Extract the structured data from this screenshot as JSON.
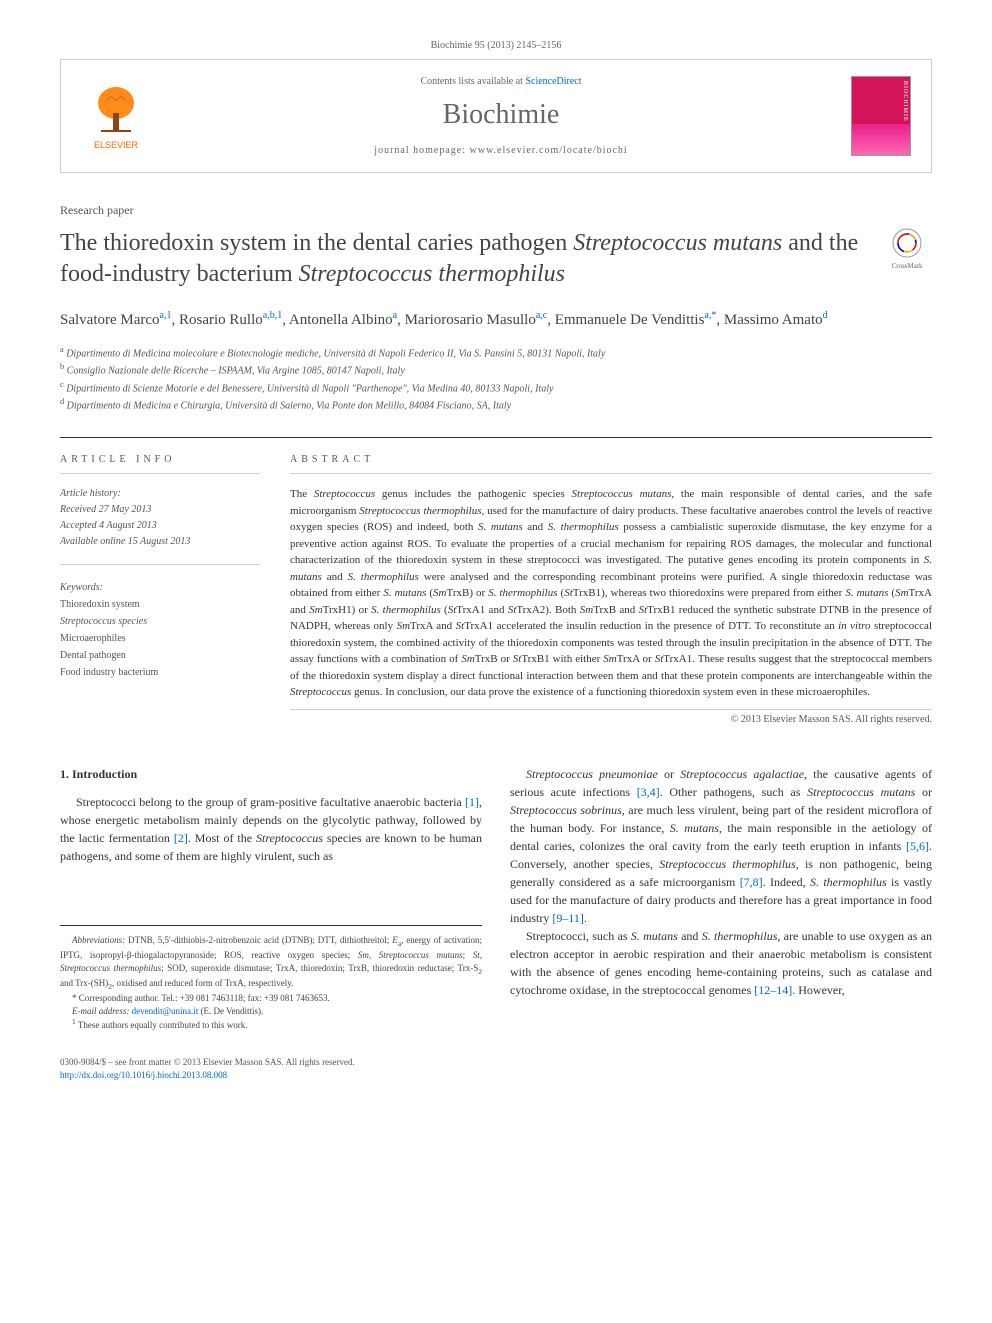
{
  "citation": "Biochimie 95 (2013) 2145–2156",
  "journal_box": {
    "contents_prefix": "Contents lists available at ",
    "contents_link": "ScienceDirect",
    "journal_name": "Biochimie",
    "homepage_prefix": "journal homepage: ",
    "homepage_url": "www.elsevier.com/locate/biochi",
    "elsevier_label": "ELSEVIER",
    "cover_label": "BIOCHIMIE"
  },
  "article_type": "Research paper",
  "title_parts": {
    "p1": "The thioredoxin system in the dental caries pathogen ",
    "em1": "Streptococcus mutans",
    "p2": " and the food-industry bacterium ",
    "em2": "Streptococcus thermophilus"
  },
  "crossmark_label": "CrossMark",
  "authors_html": "Salvatore Marco<sup>a,1</sup>, Rosario Rullo<sup>a,b,1</sup>, Antonella Albino<sup>a</sup>, Mariorosario Masullo<sup>a,c</sup>, Emmanuele De Vendittis<sup>a,*</sup>, Massimo Amato<sup>d</sup>",
  "affiliations": [
    "a Dipartimento di Medicina molecolare e Biotecnologie mediche, Università di Napoli Federico II, Via S. Pansini 5, 80131 Napoli, Italy",
    "b Consiglio Nazionale delle Ricerche – ISPAAM, Via Argine 1085, 80147 Napoli, Italy",
    "c Dipartimento di Scienze Motorie e del Benessere, Università di Napoli \"Parthenope\", Via Medina 40, 80133 Napoli, Italy",
    "d Dipartimento di Medicina e Chirurgia, Università di Salerno, Via Ponte don Melillo, 84084 Fisciano, SA, Italy"
  ],
  "info": {
    "heading": "ARTICLE INFO",
    "history_label": "Article history:",
    "received": "Received 27 May 2013",
    "accepted": "Accepted 4 August 2013",
    "online": "Available online 15 August 2013",
    "keywords_label": "Keywords:",
    "keywords": [
      "Thioredoxin system",
      "Streptococcus species",
      "Microaerophiles",
      "Dental pathogen",
      "Food industry bacterium"
    ]
  },
  "abstract": {
    "heading": "ABSTRACT",
    "text_html": "The <em>Streptococcus</em> genus includes the pathogenic species <em>Streptococcus mutans</em>, the main responsible of dental caries, and the safe microorganism <em>Streptococcus thermophilus</em>, used for the manufacture of dairy products. These facultative anaerobes control the levels of reactive oxygen species (ROS) and indeed, both <em>S. mutans</em> and <em>S. thermophilus</em> possess a cambialistic superoxide dismutase, the key enzyme for a preventive action against ROS. To evaluate the properties of a crucial mechanism for repairing ROS damages, the molecular and functional characterization of the thioredoxin system in these streptococci was investigated. The putative genes encoding its protein components in <em>S. mutans</em> and <em>S. thermophilus</em> were analysed and the corresponding recombinant proteins were purified. A single thioredoxin reductase was obtained from either <em>S. mutans</em> (<em>Sm</em>TrxB) or <em>S. thermophilus</em> (<em>St</em>TrxB1), whereas two thioredoxins were prepared from either <em>S. mutans</em> (<em>Sm</em>TrxA and <em>Sm</em>TrxH1) or <em>S. thermophilus</em> (<em>St</em>TrxA1 and <em>St</em>TrxA2). Both <em>Sm</em>TrxB and <em>St</em>TrxB1 reduced the synthetic substrate DTNB in the presence of NADPH, whereas only <em>Sm</em>TrxA and <em>St</em>TrxA1 accelerated the insulin reduction in the presence of DTT. To reconstitute an <em>in vitro</em> streptococcal thioredoxin system, the combined activity of the thioredoxin components was tested through the insulin precipitation in the absence of DTT. The assay functions with a combination of <em>Sm</em>TrxB or <em>St</em>TrxB1 with either <em>Sm</em>TrxA or <em>St</em>TrxA1. These results suggest that the streptococcal members of the thioredoxin system display a direct functional interaction between them and that these protein components are interchangeable within the <em>Streptococcus</em> genus. In conclusion, our data prove the existence of a functioning thioredoxin system even in these microaerophiles.",
    "copyright": "© 2013 Elsevier Masson SAS. All rights reserved."
  },
  "body": {
    "section_heading": "1. Introduction",
    "col1_p1_html": "Streptococci belong to the group of gram-positive facultative anaerobic bacteria <span class=\"ref-link\">[1]</span>, whose energetic metabolism mainly depends on the glycolytic pathway, followed by the lactic fermentation <span class=\"ref-link\">[2]</span>. Most of the <em>Streptococcus</em> species are known to be human pathogens, and some of them are highly virulent, such as",
    "col2_p1_html": "<em>Streptococcus pneumoniae</em> or <em>Streptococcus agalactiae</em>, the causative agents of serious acute infections <span class=\"ref-link\">[3,4]</span>. Other pathogens, such as <em>Streptococcus mutans</em> or <em>Streptococcus sobrinus</em>, are much less virulent, being part of the resident microflora of the human body. For instance, <em>S. mutans</em>, the main responsible in the aetiology of dental caries, colonizes the oral cavity from the early teeth eruption in infants <span class=\"ref-link\">[5,6]</span>. Conversely, another species, <em>Streptococcus thermophilus</em>, is non pathogenic, being generally considered as a safe microorganism <span class=\"ref-link\">[7,8]</span>. Indeed, <em>S. thermophilus</em> is vastly used for the manufacture of dairy products and therefore has a great importance in food industry <span class=\"ref-link\">[9–11]</span>.",
    "col2_p2_html": "Streptococci, such as <em>S. mutans</em> and <em>S. thermophilus</em>, are unable to use oxygen as an electron acceptor in aerobic respiration and their anaerobic metabolism is consistent with the absence of genes encoding heme-containing proteins, such as catalase and cytochrome oxidase, in the streptococcal genomes <span class=\"ref-link\">[12–14]</span>. However,"
  },
  "footnotes": {
    "abbrev_label": "Abbreviations:",
    "abbrev_text_html": " DTNB, 5,5′-dithiobis-2-nitrobenzoic acid (DTNB); DTT, dithiothreitol; <em>E</em><sub>a</sub>, energy of activation; IPTG, isopropyl-β-thiogalactopyranoside; ROS, reactive oxygen species; <em>Sm</em>, <em>Streptococcus mutans</em>; <em>St</em>, <em>Streptococcus thermophilus</em>; SOD, superoxide dismutase; TrxA, thioredoxin; TrxB, thioredoxin reductase; Trx-S<sub>2</sub> and Trx-(SH)<sub>2</sub>, oxidised and reduced form of TrxA, respectively.",
    "corresp": "* Corresponding author. Tel.: +39 081 7463118; fax: +39 081 7463653.",
    "email_label": "E-mail address: ",
    "email": "devendit@unina.it",
    "email_suffix": " (E. De Vendittis).",
    "equal": "1 These authors equally contributed to this work."
  },
  "footer": {
    "issn_line": "0300-9084/$ – see front matter © 2013 Elsevier Masson SAS. All rights reserved.",
    "doi": "http://dx.doi.org/10.1016/j.biochi.2013.08.008"
  },
  "colors": {
    "link": "#0066cc",
    "elsevier_orange": "#ff6600",
    "cover_top": "#d4145a",
    "cover_bottom": "#ff69b4"
  }
}
